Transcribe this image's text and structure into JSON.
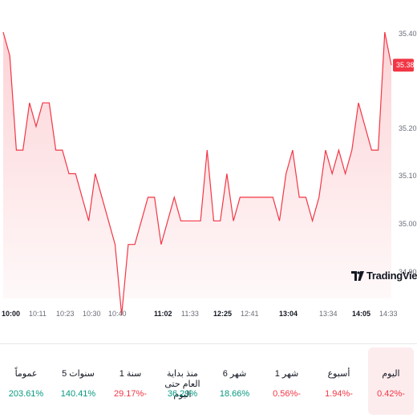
{
  "chart_data": {
    "type": "area",
    "y_ticks": [
      "35.40",
      "35.20",
      "35.10",
      "35.00",
      "34.90"
    ],
    "x_ticks": [
      {
        "label": "10:00",
        "major": true
      },
      {
        "label": "10:11",
        "major": false
      },
      {
        "label": "10:23",
        "major": false
      },
      {
        "label": "10:30",
        "major": false
      },
      {
        "label": "10:40",
        "major": false
      },
      {
        "label": "11:02",
        "major": true
      },
      {
        "label": "11:33",
        "major": false
      },
      {
        "label": "12:25",
        "major": true
      },
      {
        "label": "12:41",
        "major": false
      },
      {
        "label": "13:04",
        "major": true
      },
      {
        "label": "13:34",
        "major": false
      },
      {
        "label": "14:05",
        "major": true
      },
      {
        "label": "14:33",
        "major": false
      }
    ],
    "series": [
      {
        "values": [
          35.45,
          35.4,
          35.2,
          35.2,
          35.3,
          35.25,
          35.3,
          35.3,
          35.2,
          35.2,
          35.15,
          35.15,
          35.1,
          35.05,
          35.15,
          35.1,
          35.05,
          35.0,
          34.85,
          35.0,
          35.0,
          35.05,
          35.1,
          35.1,
          35.0,
          35.05,
          35.1,
          35.05,
          35.05,
          35.05,
          35.05,
          35.2,
          35.05,
          35.05,
          35.15,
          35.05,
          35.1,
          35.1,
          35.1,
          35.1,
          35.1,
          35.1,
          35.05,
          35.15,
          35.2,
          35.1,
          35.1,
          35.05,
          35.1,
          35.2,
          35.15,
          35.2,
          35.15,
          35.2,
          35.3,
          35.25,
          35.2,
          35.2,
          35.45,
          35.38
        ]
      }
    ],
    "last_price": "35.38",
    "colors": {
      "line": "#f23645",
      "fill": "#f23645",
      "badge": "#f23645"
    },
    "grid": false
  },
  "branding": {
    "logo_text": "TradingView"
  },
  "performance": [
    {
      "label": "اليوم",
      "value": "0.42%-",
      "direction": "neg",
      "active": true
    },
    {
      "label": "أسبوع",
      "value": "1.94%-",
      "direction": "neg",
      "active": false
    },
    {
      "label": "1 شهر",
      "value": "0.56%-",
      "direction": "neg",
      "active": false
    },
    {
      "label": "6 شهر",
      "value": "18.66%",
      "direction": "pos",
      "active": false
    },
    {
      "label": "منذ بداية العام حتى اليوم",
      "value": "36.29%",
      "direction": "pos",
      "active": false
    },
    {
      "label": "1 سنة",
      "value": "29.17%-",
      "direction": "neg",
      "active": false
    },
    {
      "label": "5 سنوات",
      "value": "140.41%",
      "direction": "pos",
      "active": false
    },
    {
      "label": "عموماً",
      "value": "203.61%",
      "direction": "pos",
      "active": false
    }
  ]
}
